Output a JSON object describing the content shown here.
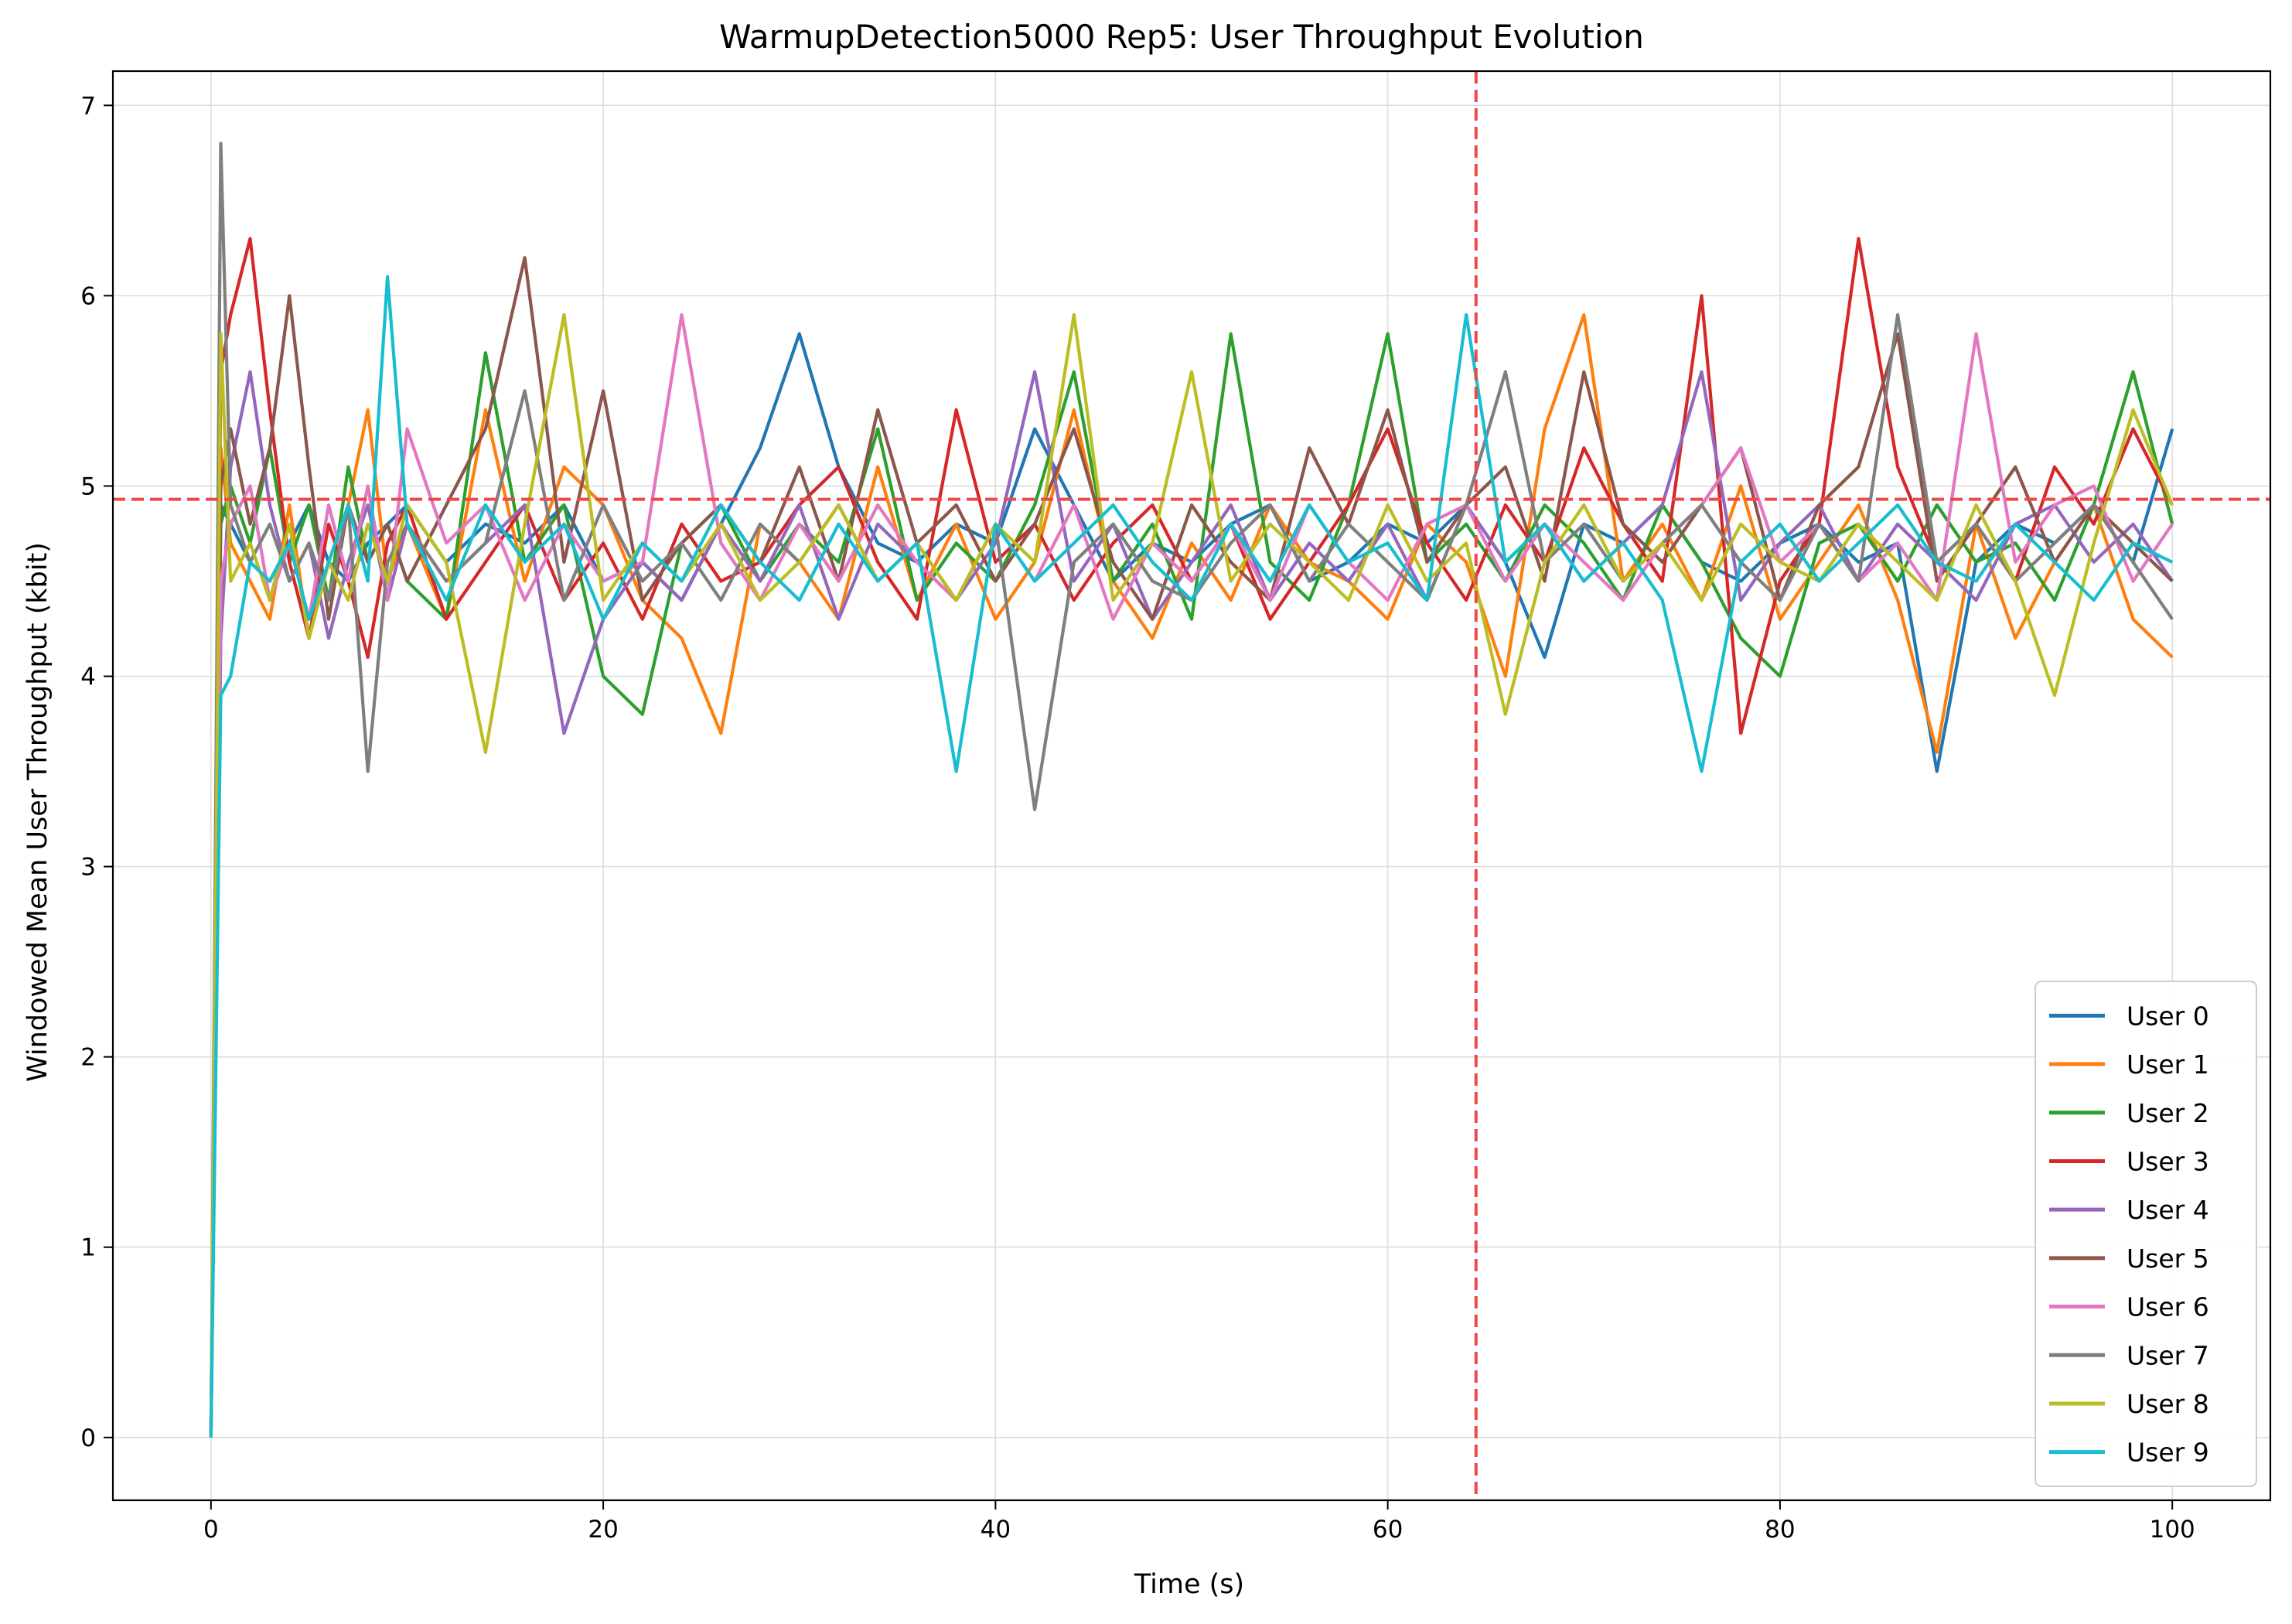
{
  "chart_data": {
    "type": "line",
    "title": "WarmupDetection5000 Rep5: User Throughput Evolution",
    "xlabel": "Time (s)",
    "ylabel": "Windowed Mean User Throughput (kbit)",
    "xlim": [
      -5,
      105
    ],
    "ylim": [
      -0.33,
      7.18
    ],
    "xticks": [
      0,
      20,
      40,
      60,
      80,
      100
    ],
    "yticks": [
      0,
      1,
      2,
      3,
      4,
      5,
      6,
      7
    ],
    "grid": true,
    "legend_position": "lower right",
    "reference_lines": [
      {
        "orientation": "horizontal",
        "value": 4.93,
        "color": "#f04848",
        "style": "dashed"
      },
      {
        "orientation": "vertical",
        "value": 64.5,
        "color": "#f04848",
        "style": "dashed"
      }
    ],
    "x": [
      0,
      0.5,
      1,
      2,
      3,
      4,
      5,
      6,
      7,
      8,
      9,
      10,
      12,
      14,
      16,
      18,
      20,
      22,
      24,
      26,
      28,
      30,
      32,
      34,
      36,
      38,
      40,
      42,
      44,
      46,
      48,
      50,
      52,
      54,
      56,
      58,
      60,
      62,
      64,
      66,
      68,
      70,
      72,
      74,
      76,
      78,
      80,
      82,
      84,
      86,
      88,
      90,
      92,
      94,
      96,
      98,
      100
    ],
    "series": [
      {
        "name": "User 0",
        "color": "#1f77b4",
        "values": [
          0,
          4.9,
          4.8,
          4.6,
          4.5,
          4.7,
          4.9,
          4.6,
          4.5,
          4.7,
          4.8,
          4.9,
          4.6,
          4.8,
          4.7,
          4.9,
          4.5,
          4.6,
          4.4,
          4.8,
          5.2,
          5.8,
          5.1,
          4.7,
          4.6,
          4.8,
          4.7,
          5.3,
          4.9,
          4.5,
          4.7,
          4.6,
          4.8,
          4.9,
          4.5,
          4.6,
          4.8,
          4.7,
          4.9,
          4.6,
          4.1,
          4.8,
          4.7,
          4.9,
          4.6,
          4.5,
          4.7,
          4.8,
          4.6,
          4.7,
          3.5,
          4.6,
          4.8,
          4.7,
          4.9,
          4.6,
          5.3
        ]
      },
      {
        "name": "User 1",
        "color": "#ff7f0e",
        "values": [
          0,
          5.2,
          4.7,
          4.5,
          4.3,
          4.9,
          4.2,
          4.6,
          4.9,
          5.4,
          4.5,
          4.8,
          4.3,
          5.4,
          4.5,
          5.1,
          4.9,
          4.4,
          4.2,
          3.7,
          4.8,
          4.6,
          4.3,
          5.1,
          4.4,
          4.8,
          4.3,
          4.6,
          5.4,
          4.5,
          4.2,
          4.7,
          4.4,
          4.9,
          4.6,
          4.5,
          4.3,
          4.8,
          4.6,
          4.0,
          5.3,
          5.9,
          4.5,
          4.8,
          4.4,
          5.0,
          4.3,
          4.6,
          4.9,
          4.4,
          3.6,
          4.8,
          4.2,
          4.6,
          4.9,
          4.3,
          4.1
        ]
      },
      {
        "name": "User 2",
        "color": "#2ca02c",
        "values": [
          0,
          4.8,
          5.0,
          4.7,
          5.2,
          4.6,
          4.9,
          4.4,
          5.1,
          4.6,
          4.8,
          4.5,
          4.3,
          5.7,
          4.6,
          4.9,
          4.0,
          3.8,
          4.7,
          4.9,
          4.5,
          4.8,
          4.6,
          5.3,
          4.4,
          4.7,
          4.5,
          4.9,
          5.6,
          4.5,
          4.8,
          4.3,
          5.8,
          4.6,
          4.4,
          4.9,
          5.8,
          4.6,
          4.8,
          4.5,
          4.9,
          4.7,
          4.4,
          4.9,
          4.6,
          4.2,
          4.0,
          4.7,
          4.8,
          4.5,
          4.9,
          4.6,
          4.7,
          4.4,
          4.9,
          5.6,
          4.8
        ]
      },
      {
        "name": "User 3",
        "color": "#d62728",
        "values": [
          0,
          5.6,
          5.9,
          6.3,
          5.4,
          4.6,
          4.2,
          4.8,
          4.5,
          4.1,
          4.7,
          4.9,
          4.3,
          4.6,
          4.9,
          4.4,
          4.7,
          4.3,
          4.8,
          4.5,
          4.6,
          4.9,
          5.1,
          4.6,
          4.3,
          5.4,
          4.6,
          4.8,
          4.4,
          4.7,
          4.9,
          4.5,
          4.8,
          4.3,
          4.6,
          4.9,
          5.3,
          4.7,
          4.4,
          4.9,
          4.6,
          5.2,
          4.8,
          4.5,
          6.0,
          3.7,
          4.5,
          4.8,
          6.3,
          5.1,
          4.6,
          4.8,
          4.5,
          5.1,
          4.8,
          5.3,
          4.9
        ]
      },
      {
        "name": "User 4",
        "color": "#9467bd",
        "values": [
          0,
          4.2,
          5.1,
          5.6,
          4.9,
          4.5,
          4.7,
          4.2,
          4.6,
          4.9,
          4.4,
          4.8,
          4.5,
          4.7,
          4.9,
          3.7,
          4.3,
          4.6,
          4.4,
          4.8,
          4.5,
          4.9,
          4.3,
          4.8,
          4.6,
          4.4,
          4.7,
          5.6,
          4.5,
          4.8,
          4.3,
          4.6,
          4.9,
          4.4,
          4.7,
          4.5,
          4.8,
          4.4,
          4.9,
          4.6,
          4.8,
          4.5,
          4.7,
          4.9,
          5.6,
          4.4,
          4.7,
          4.9,
          4.5,
          4.8,
          4.6,
          4.4,
          4.8,
          4.9,
          4.6,
          4.8,
          4.5
        ]
      },
      {
        "name": "User 5",
        "color": "#8c564b",
        "values": [
          0,
          5.0,
          5.3,
          4.8,
          5.2,
          6.0,
          5.1,
          4.3,
          4.9,
          4.6,
          4.8,
          4.5,
          4.9,
          5.3,
          6.2,
          4.6,
          5.5,
          4.4,
          4.7,
          4.9,
          4.6,
          5.1,
          4.5,
          5.4,
          4.7,
          4.9,
          4.5,
          4.8,
          5.3,
          4.6,
          4.3,
          4.9,
          4.6,
          4.4,
          5.2,
          4.8,
          5.4,
          4.6,
          4.9,
          5.1,
          4.5,
          5.6,
          4.8,
          4.6,
          4.9,
          5.2,
          4.4,
          4.9,
          5.1,
          5.8,
          4.5,
          4.8,
          5.1,
          4.6,
          4.9,
          4.7,
          4.5
        ]
      },
      {
        "name": "User 6",
        "color": "#e377c2",
        "values": [
          0,
          4.5,
          4.8,
          5.0,
          4.4,
          4.7,
          4.3,
          4.9,
          4.5,
          5.0,
          4.4,
          5.3,
          4.7,
          4.9,
          4.4,
          4.8,
          4.5,
          4.6,
          5.9,
          4.7,
          4.4,
          4.8,
          4.5,
          4.9,
          4.6,
          4.4,
          4.8,
          4.5,
          4.9,
          4.3,
          4.7,
          4.5,
          4.8,
          4.4,
          4.9,
          4.6,
          4.4,
          4.8,
          4.9,
          4.5,
          4.8,
          4.6,
          4.4,
          4.7,
          4.9,
          5.2,
          4.6,
          4.8,
          4.5,
          4.7,
          4.4,
          5.8,
          4.6,
          4.9,
          5.0,
          4.5,
          4.8
        ]
      },
      {
        "name": "User 7",
        "color": "#7f7f7f",
        "values": [
          0,
          6.8,
          4.9,
          4.6,
          4.8,
          4.5,
          4.7,
          4.4,
          4.9,
          3.5,
          4.6,
          4.8,
          4.5,
          4.7,
          5.5,
          4.4,
          4.9,
          4.5,
          4.7,
          4.4,
          4.8,
          4.6,
          4.9,
          4.5,
          4.7,
          4.4,
          4.8,
          3.3,
          4.6,
          4.8,
          4.5,
          4.4,
          4.7,
          4.9,
          4.5,
          4.8,
          4.6,
          4.4,
          4.9,
          5.6,
          4.6,
          4.8,
          4.5,
          4.7,
          4.9,
          4.6,
          4.4,
          4.8,
          4.5,
          5.9,
          4.6,
          4.8,
          4.5,
          4.7,
          4.9,
          4.6,
          4.3
        ]
      },
      {
        "name": "User 8",
        "color": "#bcbd22",
        "values": [
          0,
          5.8,
          4.5,
          4.7,
          4.4,
          4.8,
          4.2,
          4.6,
          4.4,
          4.8,
          4.5,
          4.9,
          4.6,
          3.6,
          4.8,
          5.9,
          4.4,
          4.7,
          4.5,
          4.8,
          4.4,
          4.6,
          4.9,
          4.5,
          4.7,
          4.4,
          4.8,
          4.6,
          5.9,
          4.4,
          4.7,
          5.6,
          4.5,
          4.8,
          4.6,
          4.4,
          4.9,
          4.5,
          4.7,
          3.8,
          4.6,
          4.9,
          4.5,
          4.7,
          4.4,
          4.8,
          4.6,
          4.5,
          4.8,
          4.6,
          4.4,
          4.9,
          4.5,
          3.9,
          4.7,
          5.4,
          4.9
        ]
      },
      {
        "name": "User 9",
        "color": "#17becf",
        "values": [
          0,
          3.9,
          4.0,
          4.6,
          4.5,
          4.7,
          4.3,
          4.6,
          4.9,
          4.5,
          6.1,
          4.8,
          4.4,
          4.9,
          4.6,
          4.8,
          4.3,
          4.7,
          4.5,
          4.9,
          4.6,
          4.4,
          4.8,
          4.5,
          4.7,
          3.5,
          4.8,
          4.5,
          4.7,
          4.9,
          4.6,
          4.4,
          4.8,
          4.5,
          4.9,
          4.6,
          4.7,
          4.4,
          5.9,
          4.6,
          4.8,
          4.5,
          4.7,
          4.4,
          3.5,
          4.6,
          4.8,
          4.5,
          4.7,
          4.9,
          4.6,
          4.5,
          4.8,
          4.6,
          4.4,
          4.7,
          4.6
        ]
      }
    ]
  }
}
